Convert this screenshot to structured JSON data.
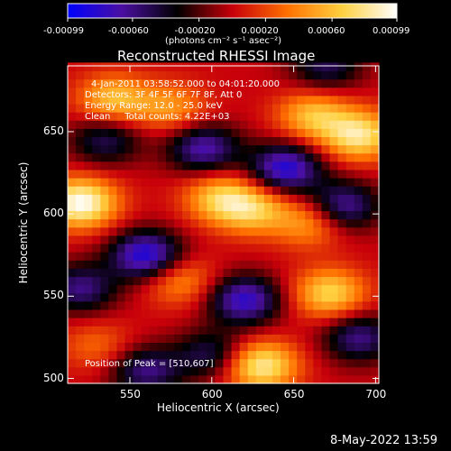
{
  "colorbar": {
    "ticks": [
      "-0.00099",
      "-0.00060",
      "-0.00020",
      "0.00020",
      "0.00060",
      "0.00099"
    ],
    "tick_values": [
      -0.00099,
      -0.0006,
      -0.0002,
      0.0002,
      0.0006,
      0.00099
    ],
    "unit_label": "(photons cm⁻² s⁻¹ asec⁻²)",
    "colors": [
      "#0000ff",
      "#4b0fa0",
      "#000000",
      "#c8000a",
      "#ff7000",
      "#ffd040",
      "#ffffff"
    ]
  },
  "chart_data": {
    "type": "heatmap",
    "title": "Reconstructed RHESSI Image",
    "xlabel": "Heliocentric X (arcsec)",
    "ylabel": "Heliocentric Y (arcsec)",
    "xlim": [
      512,
      702
    ],
    "ylim": [
      497,
      690
    ],
    "xticks": [
      550,
      600,
      650,
      700
    ],
    "yticks": [
      500,
      550,
      600,
      650
    ],
    "annotations": [
      "4-Jan-2011 03:58:52.000 to 04:01:20.000",
      "Detectors: 3F 4F 5F 6F 7F 8F, Att 0",
      "Energy Range: 12.0 - 25.0 keV",
      "Clean     Total counts: 4.22E+03"
    ],
    "peak_label": "Position of Peak = [510,607]",
    "peak_position": [
      510,
      607
    ],
    "total_counts": 4220,
    "energy_range_kev": [
      12.0,
      25.0
    ],
    "features": [
      {
        "x": 520,
        "y": 607,
        "value": 0.00099
      },
      {
        "x": 540,
        "y": 670,
        "value": 0.0006
      },
      {
        "x": 580,
        "y": 560,
        "value": 0.00045
      },
      {
        "x": 630,
        "y": 508,
        "value": 0.00085
      },
      {
        "x": 672,
        "y": 552,
        "value": 0.0007
      },
      {
        "x": 690,
        "y": 648,
        "value": 0.0008
      },
      {
        "x": 662,
        "y": 660,
        "value": 0.0006
      },
      {
        "x": 625,
        "y": 603,
        "value": 0.0006
      },
      {
        "x": 605,
        "y": 610,
        "value": 0.0006
      },
      {
        "x": 660,
        "y": 595,
        "value": 0.0005
      },
      {
        "x": 575,
        "y": 665,
        "value": 0.00045
      },
      {
        "x": 530,
        "y": 520,
        "value": 0.0003
      },
      {
        "x": 560,
        "y": 575,
        "value": -0.0009
      },
      {
        "x": 620,
        "y": 548,
        "value": -0.0008
      },
      {
        "x": 645,
        "y": 628,
        "value": -0.00085
      },
      {
        "x": 595,
        "y": 640,
        "value": -0.0007
      },
      {
        "x": 680,
        "y": 605,
        "value": -0.0007
      },
      {
        "x": 520,
        "y": 555,
        "value": -0.0006
      },
      {
        "x": 535,
        "y": 645,
        "value": -0.0005
      },
      {
        "x": 560,
        "y": 505,
        "value": -0.0006
      },
      {
        "x": 600,
        "y": 515,
        "value": -0.0005
      },
      {
        "x": 690,
        "y": 525,
        "value": -0.0006
      },
      {
        "x": 670,
        "y": 690,
        "value": -0.0005
      }
    ]
  },
  "timestamp": "8-May-2022 13:59"
}
